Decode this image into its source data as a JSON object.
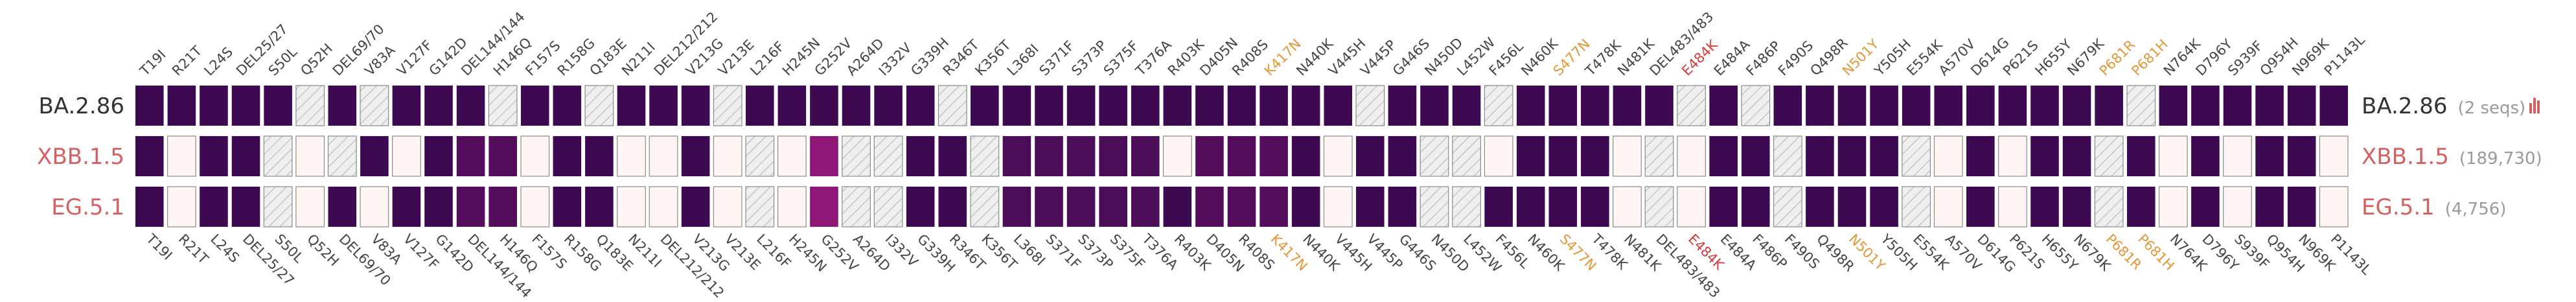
{
  "chart_data": {
    "type": "heatmap",
    "title": "",
    "xlabel": "",
    "ylabel": "",
    "legend": "none",
    "mutations": [
      "T19I",
      "R21T",
      "L24S",
      "DEL25/27",
      "S50L",
      "Q52H",
      "DEL69/70",
      "V83A",
      "V127F",
      "G142D",
      "DEL144/144",
      "H146Q",
      "F157S",
      "R158G",
      "Q183E",
      "N211I",
      "DEL212/212",
      "V213G",
      "V213E",
      "L216F",
      "H245N",
      "G252V",
      "A264D",
      "I332V",
      "G339H",
      "R346T",
      "K356T",
      "L368I",
      "S371F",
      "S373P",
      "S375F",
      "T376A",
      "R403K",
      "D405N",
      "R408S",
      "K417N",
      "N440K",
      "V445H",
      "V445P",
      "G446S",
      "N450D",
      "L452W",
      "F456L",
      "N460K",
      "S477N",
      "T478K",
      "N481K",
      "DEL483/483",
      "E484K",
      "E484A",
      "F486P",
      "F490S",
      "Q498R",
      "N501Y",
      "Y505H",
      "E554K",
      "A570V",
      "D614G",
      "P621S",
      "H655Y",
      "N679K",
      "P681R",
      "P681H",
      "N764K",
      "D796Y",
      "S939F",
      "Q954H",
      "N969K",
      "P1143L"
    ],
    "highlight_orange": [
      "K417N",
      "S477N",
      "N501Y",
      "P681R",
      "P681H"
    ],
    "highlight_red": [
      "E484K"
    ],
    "rows": [
      {
        "name": "BA.2.86",
        "count": "(2 seqs)",
        "accent": "#3d0a52",
        "values": [
          1,
          1,
          1,
          1,
          1,
          "na",
          1,
          "na",
          1,
          1,
          1,
          "na",
          1,
          1,
          "na",
          1,
          1,
          1,
          "na",
          1,
          1,
          1,
          1,
          1,
          1,
          "na",
          1,
          1,
          1,
          1,
          1,
          1,
          1,
          1,
          1,
          1,
          1,
          1,
          "na",
          1,
          1,
          1,
          "na",
          1,
          1,
          1,
          1,
          1,
          "na",
          1,
          "na",
          1,
          1,
          1,
          1,
          1,
          1,
          1,
          1,
          1,
          1,
          1,
          "na",
          1,
          1,
          1,
          1,
          1,
          1
        ]
      },
      {
        "name": "XBB.1.5",
        "count": "(189,730)",
        "accent": "#d46060",
        "values": [
          1,
          0,
          1,
          1,
          "na",
          0,
          "na",
          1,
          0,
          1,
          0.92,
          0.92,
          0,
          1,
          1,
          0,
          0,
          1,
          0,
          "na",
          0,
          0.7,
          "na",
          "na",
          1,
          1,
          "na",
          0.95,
          0.95,
          0.95,
          0.95,
          0.95,
          0,
          0.92,
          0.92,
          0.92,
          1,
          0,
          1,
          1,
          "na",
          "na",
          0,
          1,
          1,
          1,
          0,
          "na",
          0,
          1,
          1,
          "na",
          1,
          1,
          1,
          "na",
          0,
          1,
          0,
          1,
          1,
          "na",
          1,
          0,
          1,
          0,
          1,
          1,
          0
        ]
      },
      {
        "name": "EG.5.1",
        "count": "(4,756)",
        "accent": "#d46060",
        "values": [
          1,
          0,
          1,
          1,
          "na",
          0,
          1,
          0,
          1,
          1,
          0.92,
          0.92,
          0,
          1,
          1,
          0,
          0,
          1,
          0,
          "na",
          0,
          0.7,
          "na",
          "na",
          1,
          1,
          "na",
          0.95,
          0.95,
          0.95,
          0.95,
          0.95,
          1,
          0.92,
          0.92,
          0.92,
          1,
          0,
          1,
          1,
          "na",
          "na",
          1,
          1,
          1,
          1,
          0,
          "na",
          0,
          1,
          1,
          "na",
          1,
          1,
          1,
          "na",
          0,
          1,
          0,
          1,
          1,
          "na",
          1,
          0,
          1,
          0,
          1,
          1,
          0
        ]
      }
    ]
  },
  "colors": {
    "full": "#3d0a52",
    "cell_empty": "#fff5f3",
    "na_fill": "#efefef",
    "label_default": "#444444",
    "label_orange": "#e59635",
    "label_red": "#d63a3a",
    "row_label_first": "#333333",
    "row_label_other": "#d46060"
  },
  "legend_icon": "bar-chart-icon"
}
